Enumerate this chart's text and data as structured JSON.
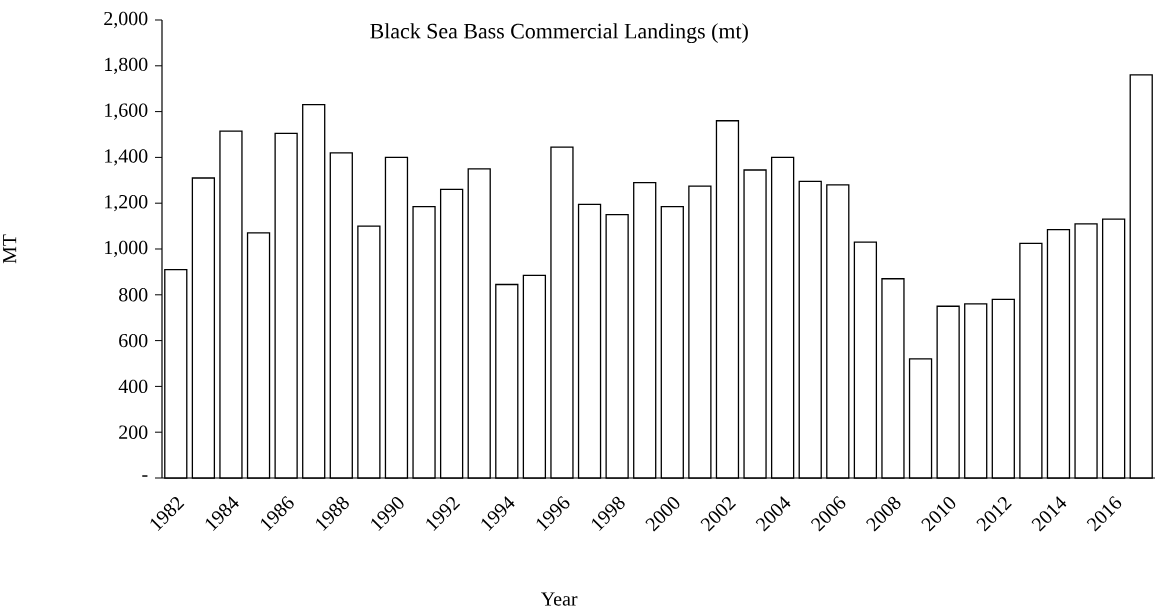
{
  "chart_data": {
    "type": "bar",
    "title": "Black Sea Bass Commercial Landings (mt)",
    "xlabel": "Year",
    "ylabel": "MT",
    "categories": [
      "1982",
      null,
      "1984",
      null,
      "1986",
      null,
      "1988",
      null,
      "1990",
      null,
      "1992",
      null,
      "1994",
      null,
      "1996",
      null,
      "1998",
      null,
      "2000",
      null,
      "2002",
      null,
      "2004",
      null,
      "2006",
      null,
      "2008",
      null,
      "2010",
      null,
      "2012",
      null,
      "2014",
      null,
      "2016",
      null
    ],
    "values": [
      910,
      1310,
      1515,
      1070,
      1505,
      1630,
      1420,
      1100,
      1400,
      1185,
      1260,
      1350,
      845,
      885,
      1445,
      1195,
      1150,
      1290,
      1185,
      1275,
      1560,
      1345,
      1400,
      1295,
      1280,
      1030,
      870,
      520,
      750,
      760,
      780,
      1025,
      1085,
      1110,
      1130,
      1760
    ],
    "color": "#ffffff",
    "ylim": [
      0,
      2000
    ],
    "yticks": [
      {
        "value": 0,
        "label": "-"
      },
      200,
      400,
      600,
      800,
      {
        "value": 1000,
        "label": "1,000"
      },
      {
        "value": 1200,
        "label": "1,200"
      },
      {
        "value": 1400,
        "label": "1,400"
      },
      {
        "value": 1600,
        "label": "1,600"
      },
      {
        "value": 1800,
        "label": "1,800"
      },
      {
        "value": 2000,
        "label": "2,000"
      }
    ]
  }
}
